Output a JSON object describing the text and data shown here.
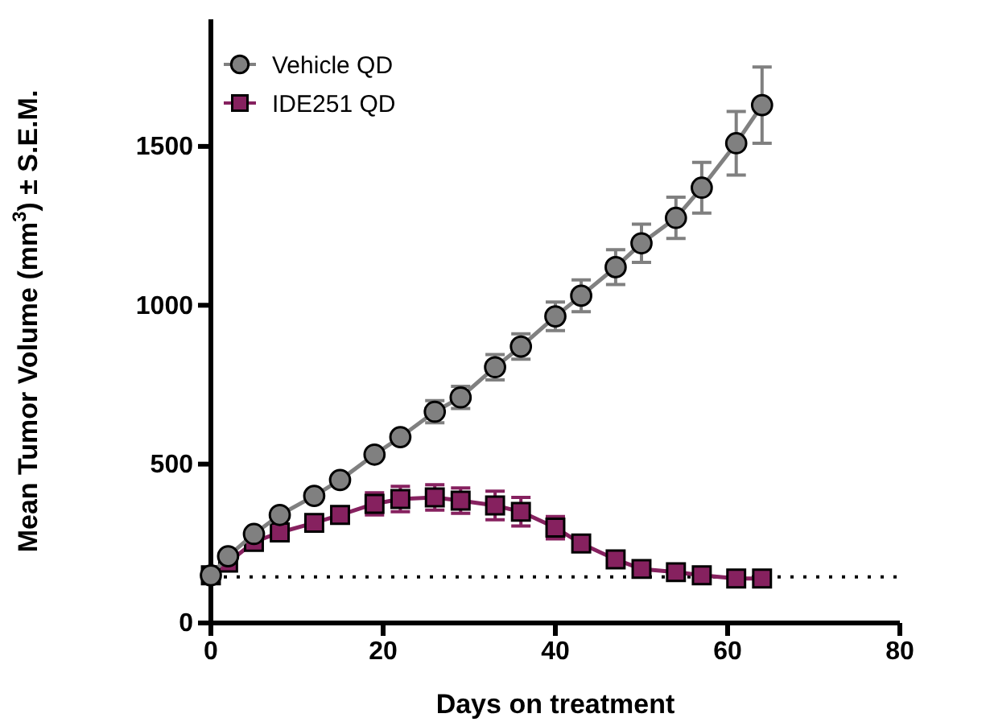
{
  "chart_data": {
    "type": "line",
    "xlabel": "Days on treatment",
    "ylabel": "Mean Tumor Volume (mm$^{3}$) ± S.E.M.",
    "x": [
      0,
      2,
      5,
      8,
      12,
      15,
      19,
      22,
      26,
      29,
      33,
      36,
      40,
      43,
      47,
      50,
      54,
      57,
      61,
      64
    ],
    "xlim": [
      0,
      80
    ],
    "xticks": [
      0,
      20,
      40,
      60,
      80
    ],
    "ylim": [
      0,
      1900
    ],
    "yticks": [
      0,
      500,
      1000,
      1500
    ],
    "legend": "top left",
    "grid": false,
    "line_style": "solid",
    "series": [
      {
        "name": "Vehicle QD",
        "color": "#808080",
        "marker": "circle",
        "values": [
          150,
          210,
          280,
          340,
          400,
          450,
          530,
          585,
          665,
          710,
          805,
          870,
          965,
          1030,
          1120,
          1195,
          1275,
          1370,
          1510,
          1630
        ],
        "errors": [
          null,
          null,
          null,
          null,
          null,
          null,
          null,
          null,
          35,
          35,
          40,
          40,
          45,
          50,
          55,
          60,
          65,
          80,
          100,
          120
        ]
      },
      {
        "name": "IDE251 QD",
        "color": "#86215f",
        "marker": "square",
        "values": [
          150,
          190,
          255,
          285,
          315,
          340,
          375,
          390,
          395,
          385,
          370,
          350,
          300,
          250,
          200,
          170,
          160,
          150,
          140,
          140
        ],
        "errors": [
          null,
          null,
          null,
          null,
          null,
          null,
          35,
          40,
          40,
          40,
          45,
          45,
          35,
          null,
          null,
          null,
          null,
          null,
          null,
          null
        ]
      }
    ],
    "ref_lines": [
      {
        "axis": "y",
        "value": 145,
        "color": "#000000",
        "line_style": "dotted"
      }
    ]
  }
}
